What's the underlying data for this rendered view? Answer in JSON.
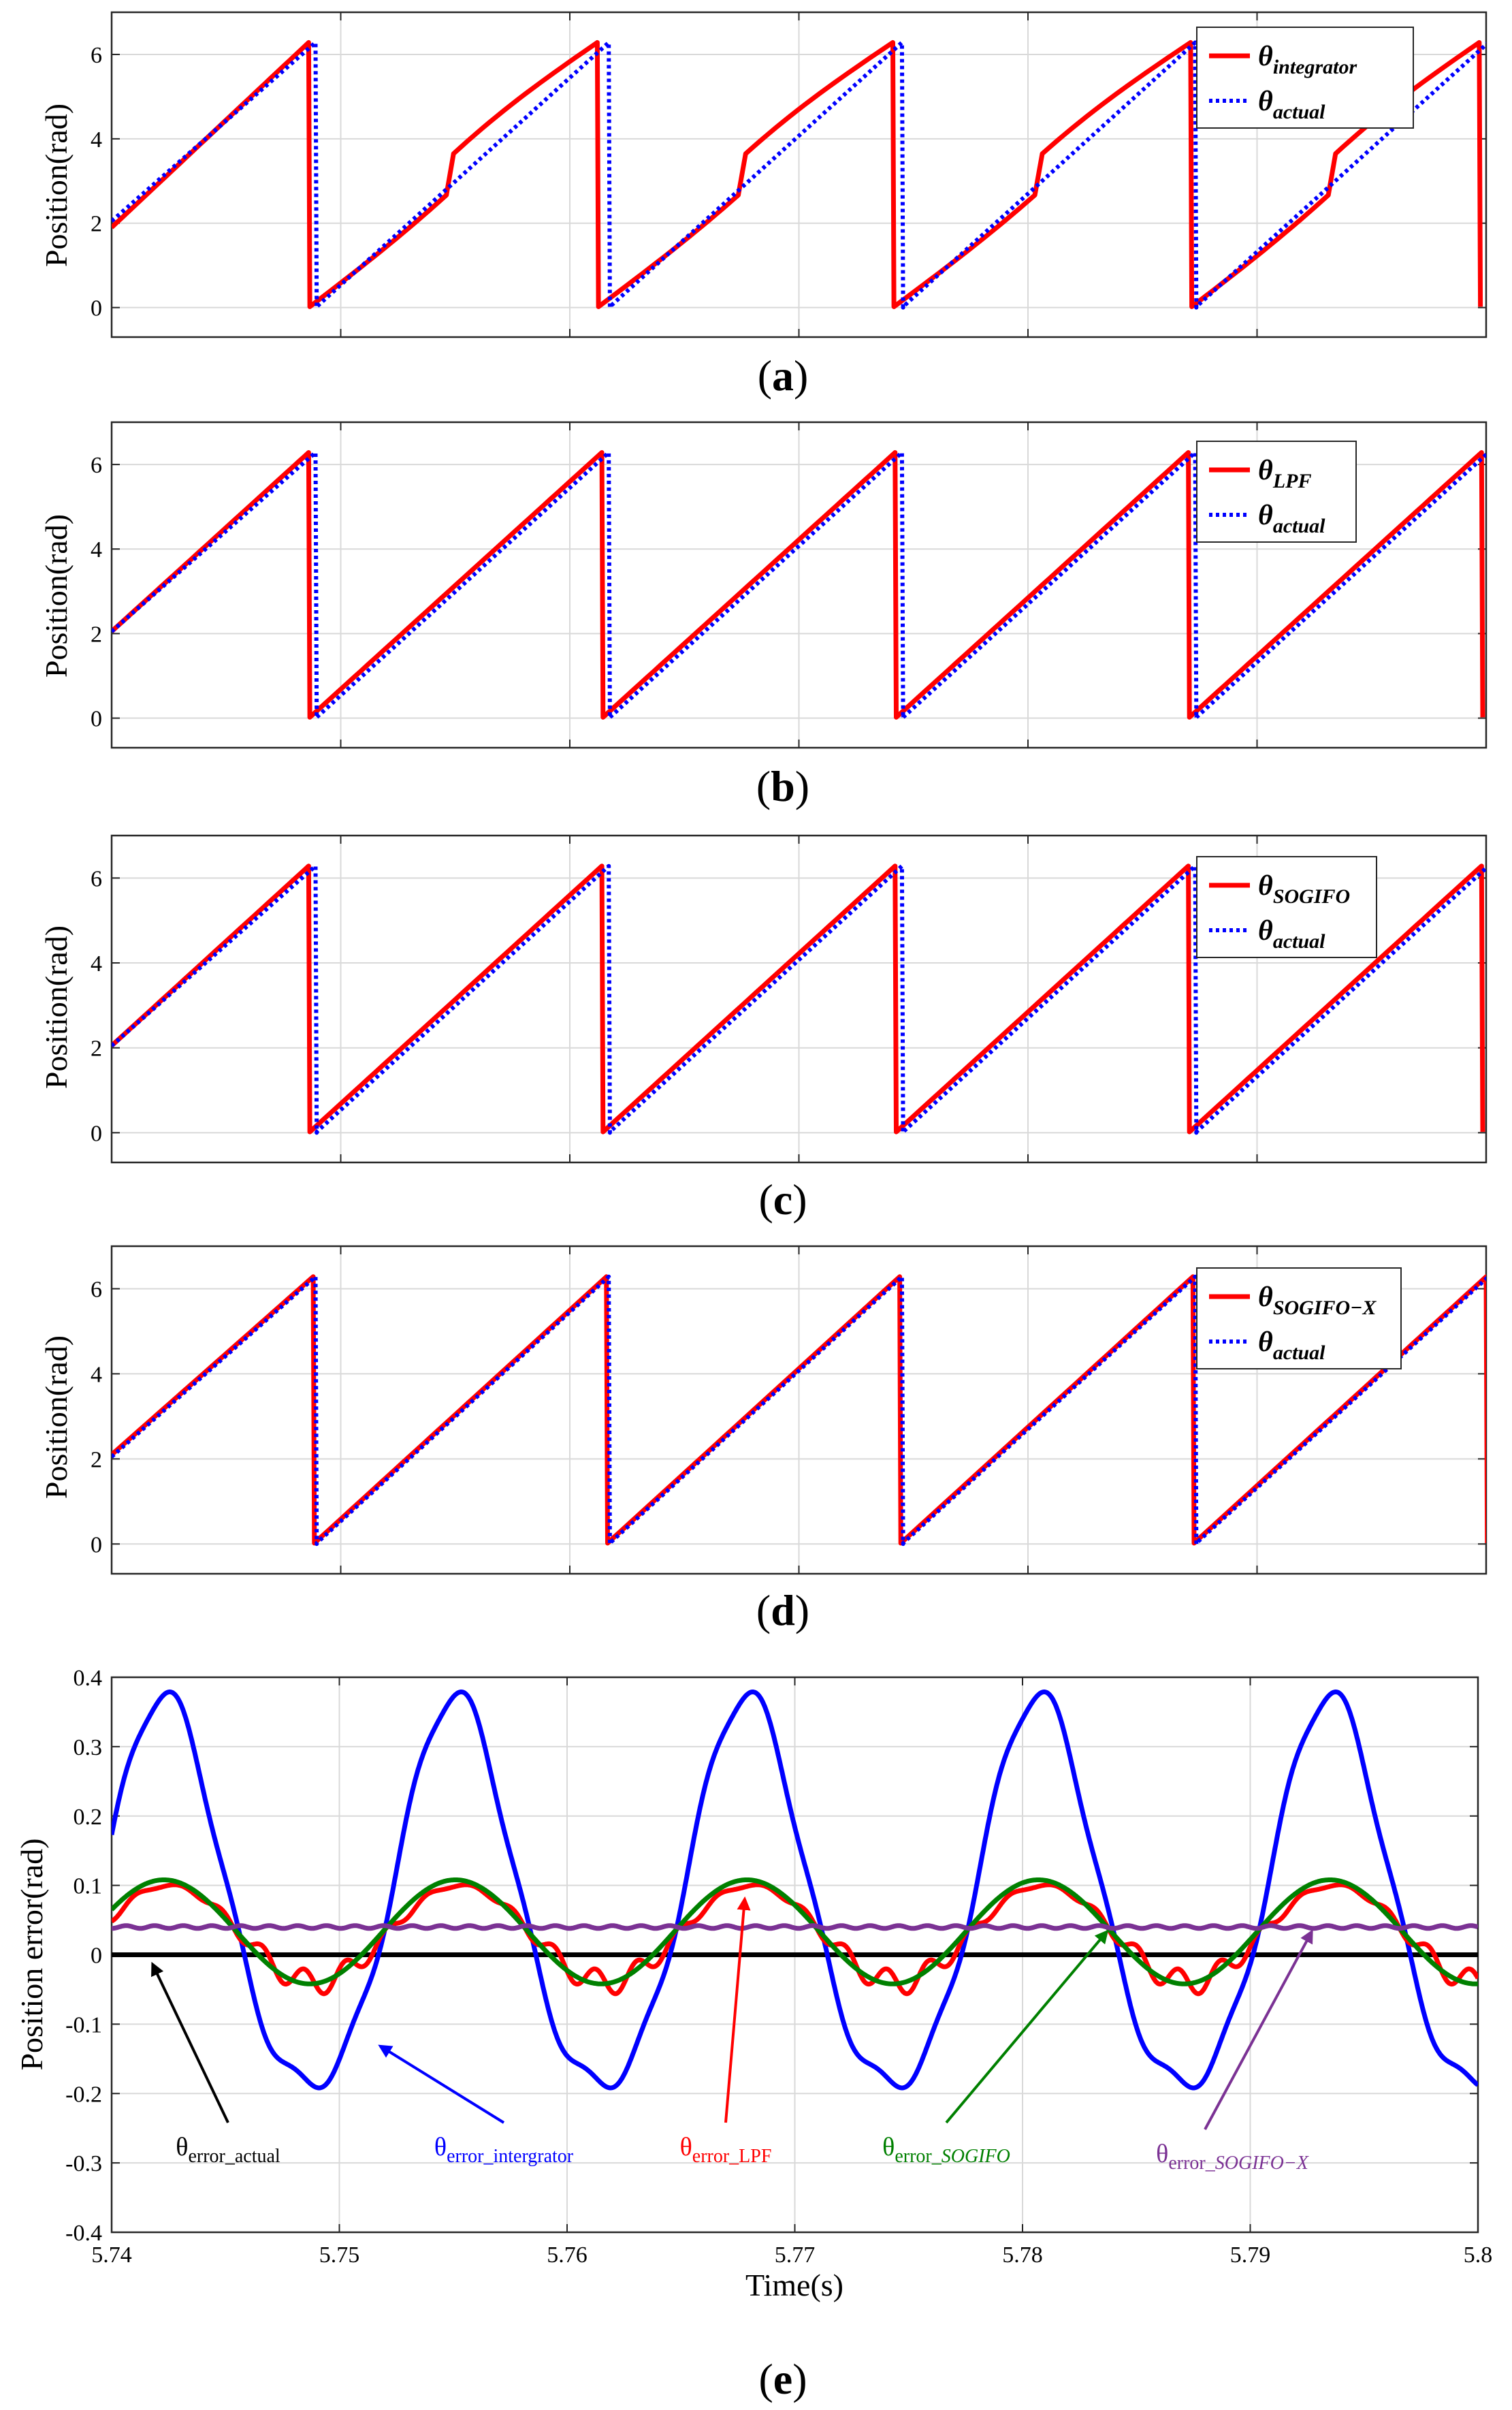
{
  "figure": {
    "y_label_position": "Position(rad)",
    "y_label_error": "Position error(rad)",
    "x_label": "Time(s)"
  },
  "chart_data": [
    {
      "type": "line",
      "panel": "a",
      "caption_letter": "a",
      "x_range": [
        5.74,
        5.8
      ],
      "ylim": [
        -0.7,
        7
      ],
      "yticks": [
        0,
        2,
        4,
        6
      ],
      "ytick_labels": [
        "0",
        "2",
        "4",
        "6"
      ],
      "xtick_labels": [],
      "ylabel": "Position(rad)",
      "grid": true,
      "legend_position": "top-right",
      "series": [
        {
          "name": "θ_integrator",
          "legend_symbol": "θ",
          "legend_sub": "integrator",
          "color": "#ff0000",
          "style": "solid",
          "wraps_t": [
            5.7486,
            5.7612,
            5.7741,
            5.7871,
            5.7997
          ],
          "start": 1.9,
          "end": 0.35,
          "bulge": 0.55
        },
        {
          "name": "θ_actual",
          "legend_symbol": "θ",
          "legend_sub": "actual",
          "color": "#0000ff",
          "style": "dotted",
          "wraps_t": [
            5.7489,
            5.7617,
            5.7745,
            5.7873,
            5.8001
          ],
          "start": 2.05
        }
      ]
    },
    {
      "type": "line",
      "panel": "b",
      "caption_letter": "b",
      "x_range": [
        5.74,
        5.8
      ],
      "ylim": [
        -0.7,
        7
      ],
      "yticks": [
        0,
        2,
        4,
        6
      ],
      "ytick_labels": [
        "0",
        "2",
        "4",
        "6"
      ],
      "xtick_labels": [],
      "ylabel": "Position(rad)",
      "grid": true,
      "legend_position": "top-right",
      "series": [
        {
          "name": "θ_LPF",
          "legend_symbol": "θ",
          "legend_sub": "LPF",
          "color": "#ff0000",
          "style": "solid",
          "wraps_t": [
            5.7486,
            5.7614,
            5.7742,
            5.787,
            5.7998
          ],
          "start": 2.05,
          "end": 0.15
        },
        {
          "name": "θ_actual",
          "legend_symbol": "θ",
          "legend_sub": "actual",
          "color": "#0000ff",
          "style": "dotted",
          "wraps_t": [
            5.7489,
            5.7617,
            5.7745,
            5.7873,
            5.8001
          ],
          "start": 2.05
        }
      ]
    },
    {
      "type": "line",
      "panel": "c",
      "caption_letter": "c",
      "x_range": [
        5.74,
        5.8
      ],
      "ylim": [
        -0.7,
        7
      ],
      "yticks": [
        0,
        2,
        4,
        6
      ],
      "ytick_labels": [
        "0",
        "2",
        "4",
        "6"
      ],
      "xtick_labels": [],
      "ylabel": "Position(rad)",
      "grid": true,
      "legend_position": "top-right",
      "series": [
        {
          "name": "θ_SOGIFO",
          "legend_symbol": "θ",
          "legend_sub": "SOGIFO",
          "color": "#ff0000",
          "style": "solid",
          "wraps_t": [
            5.7486,
            5.7614,
            5.7742,
            5.787,
            5.7998
          ],
          "start": 2.05,
          "end": 0.15
        },
        {
          "name": "θ_actual",
          "legend_symbol": "θ",
          "legend_sub": "actual",
          "color": "#0000ff",
          "style": "dotted",
          "wraps_t": [
            5.7489,
            5.7617,
            5.7745,
            5.7873,
            5.8001
          ],
          "start": 2.05
        }
      ]
    },
    {
      "type": "line",
      "panel": "d",
      "caption_letter": "d",
      "x_range": [
        5.74,
        5.8
      ],
      "ylim": [
        -0.7,
        7
      ],
      "yticks": [
        0,
        2,
        4,
        6
      ],
      "ytick_labels": [
        "0",
        "2",
        "4",
        "6"
      ],
      "xtick_labels": [],
      "ylabel": "Position(rad)",
      "grid": true,
      "legend_position": "top-right",
      "series": [
        {
          "name": "θ_SOGIFO−X",
          "legend_symbol": "θ",
          "legend_sub": "SOGIFO−X",
          "color": "#ff0000",
          "style": "solid",
          "wraps_t": [
            5.7488,
            5.7616,
            5.7744,
            5.7872,
            5.8
          ],
          "start": 2.1,
          "end": 0.15
        },
        {
          "name": "θ_actual",
          "legend_symbol": "θ",
          "legend_sub": "actual",
          "color": "#0000ff",
          "style": "dotted",
          "wraps_t": [
            5.7489,
            5.7617,
            5.7745,
            5.7873,
            5.8001
          ],
          "start": 2.05
        }
      ]
    },
    {
      "type": "line",
      "panel": "e",
      "caption_letter": "e",
      "x_range": [
        5.74,
        5.8
      ],
      "ylim": [
        -0.4,
        0.4
      ],
      "xticks": [
        5.74,
        5.75,
        5.76,
        5.77,
        5.78,
        5.79,
        5.8
      ],
      "xtick_labels": [
        "5.74",
        "5.75",
        "5.76",
        "5.77",
        "5.78",
        "5.79",
        "5.8"
      ],
      "yticks": [
        -0.4,
        -0.3,
        -0.2,
        -0.1,
        0,
        0.1,
        0.2,
        0.3,
        0.4
      ],
      "ytick_labels": [
        "-0.4",
        "-0.3",
        "-0.2",
        "-0.1",
        "0",
        "0.1",
        "0.2",
        "0.3",
        "0.4"
      ],
      "xlabel": "Time(s)",
      "ylabel": "Position error(rad)",
      "grid": true,
      "period": 0.0128,
      "series": [
        {
          "name": "θerror_actual",
          "color": "#000000",
          "mean": 0.0,
          "amplitude": 0.0,
          "peak_t": 5.742
        },
        {
          "name": "θerror_intergrator",
          "color": "#0000ff",
          "mean": 0.065,
          "amplitude": 0.29,
          "peak_t": 5.7423,
          "max": 0.355,
          "min": -0.23
        },
        {
          "name": "θerror_LPF",
          "color": "#ff0000",
          "mean": 0.03,
          "amplitude": 0.07,
          "peak_t": 5.7425,
          "ripple": 0.018
        },
        {
          "name": "θerror_SOGIFO",
          "color": "#008000",
          "mean": 0.033,
          "amplitude": 0.075,
          "peak_t": 5.7423,
          "max": 0.108,
          "min": -0.042
        },
        {
          "name": "θerror_SOGIFO−X",
          "color": "#7b3294",
          "mean": 0.04,
          "amplitude": 0.0,
          "peak_t": 5.742
        }
      ],
      "annotations": [
        {
          "label": "θerror_actual",
          "symbol": "θ",
          "sub": "error_actual",
          "color": "#000000",
          "italic": false,
          "target_t": 5.7418,
          "target_y": -0.002
        },
        {
          "label": "θerror_intergrator",
          "symbol": "θ",
          "sub": "error_intergrator",
          "color": "#0000ff",
          "italic": false,
          "target_t": 5.7518,
          "target_y": -0.12
        },
        {
          "label": "θerror_LPF",
          "symbol": "θ",
          "sub": "error_LPF",
          "color": "#ff0000",
          "italic": false,
          "target_t": 5.7678,
          "target_y": 0.092
        },
        {
          "label": "θerror_SOGIFO",
          "symbol": "θ",
          "sub": "error_",
          "sub_italic": "SOGIFO",
          "color": "#008000",
          "italic": true,
          "target_t": 5.7837,
          "target_y": 0.045
        },
        {
          "label": "θerror_SOGIFO−X",
          "symbol": "θ",
          "sub": "error_",
          "sub_italic": "SOGIFO−X",
          "color": "#7b3294",
          "italic": true,
          "target_t": 5.7927,
          "target_y": 0.045
        }
      ]
    }
  ]
}
